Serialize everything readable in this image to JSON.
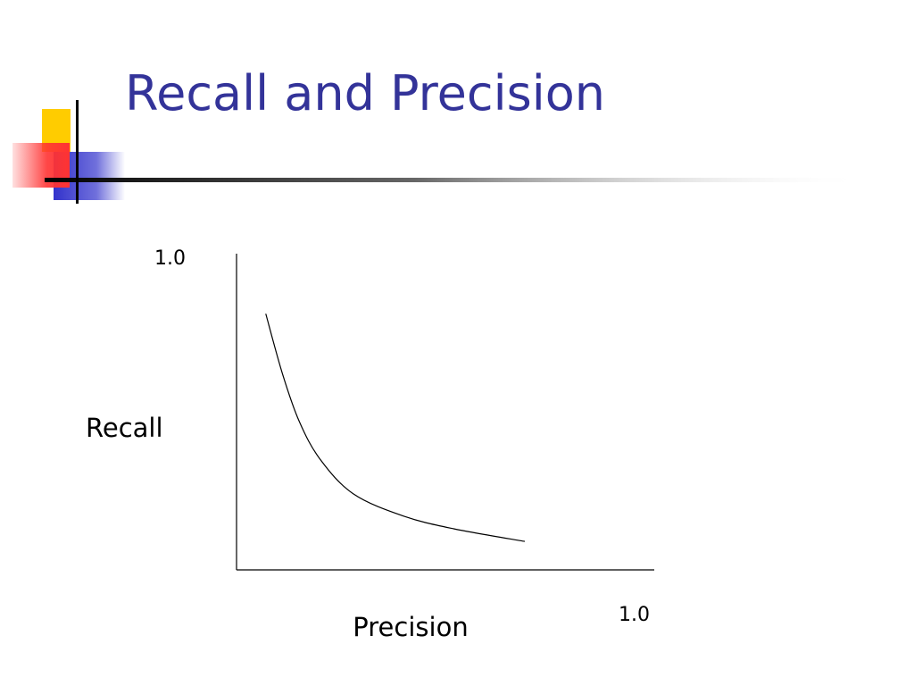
{
  "slide": {
    "title": "Recall and Precision"
  },
  "colors": {
    "title": "#333399",
    "deco_yellow": "#ffcc00",
    "deco_red": "#ff3333",
    "deco_blue": "#3333cc",
    "axis": "#000000"
  },
  "chart_data": {
    "type": "line",
    "title": "",
    "xlabel": "Precision",
    "ylabel": "Recall",
    "xlim": [
      0,
      1.0
    ],
    "ylim": [
      0,
      1.0
    ],
    "x_tick_label": "1.0",
    "y_tick_label": "1.0",
    "grid": false,
    "series": [
      {
        "x": [
          0.07,
          0.11,
          0.15,
          0.2,
          0.28,
          0.4,
          0.52,
          0.69
        ],
        "y": [
          0.81,
          0.62,
          0.47,
          0.35,
          0.24,
          0.17,
          0.13,
          0.09
        ]
      }
    ]
  }
}
